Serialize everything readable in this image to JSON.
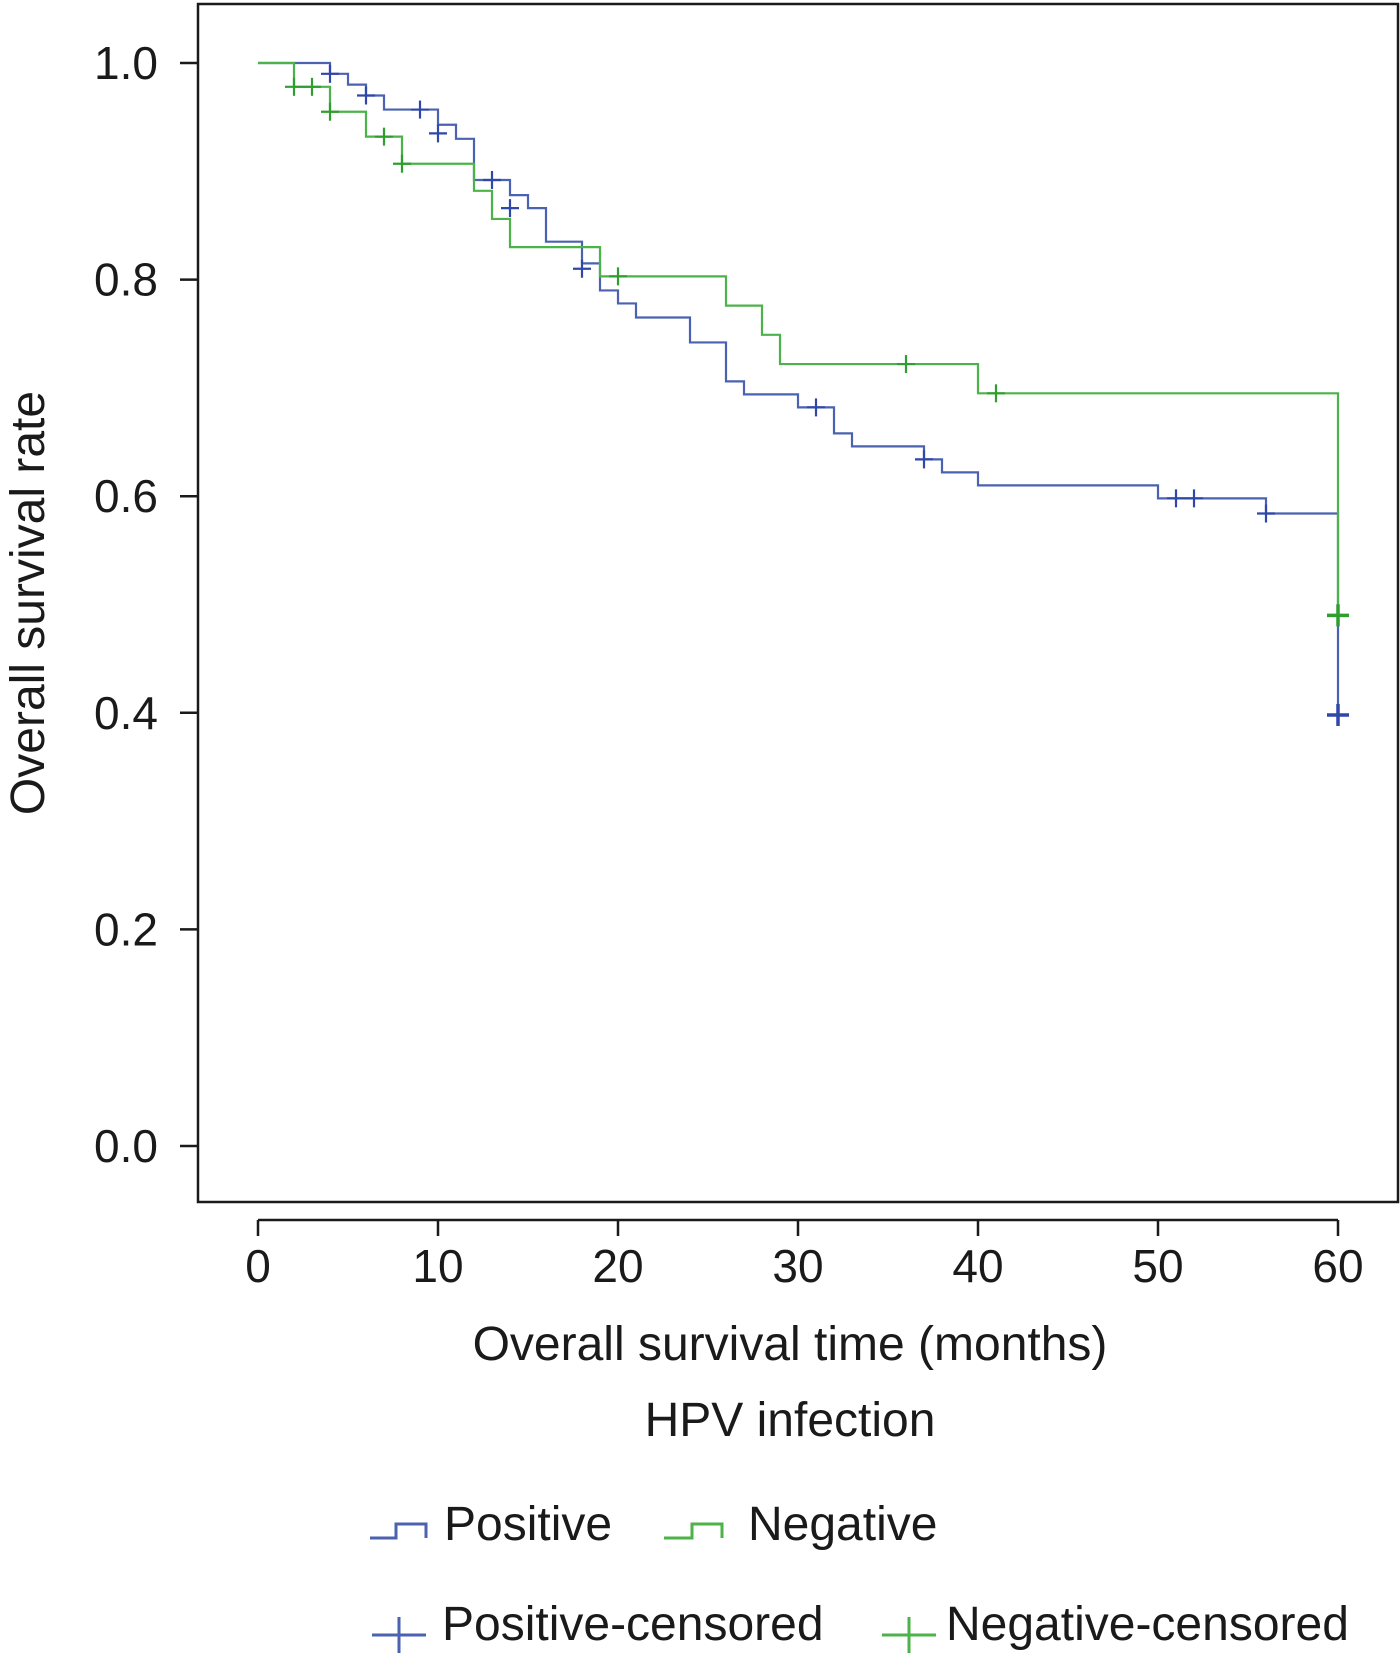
{
  "chart_data": {
    "type": "line",
    "subtype": "kaplan-meier",
    "title": "",
    "xlabel": "Overall survival time (months)",
    "ylabel": "Overall survival rate",
    "legend_title": "HPV infection",
    "legend_position": "bottom",
    "xlim": [
      0,
      60
    ],
    "ylim": [
      0,
      1
    ],
    "xticks": [
      0,
      10,
      20,
      30,
      40,
      50,
      60
    ],
    "yticks": [
      0.0,
      0.2,
      0.4,
      0.6,
      0.8,
      1.0
    ],
    "xtick_labels": [
      "0",
      "10",
      "20",
      "30",
      "40",
      "50",
      "60"
    ],
    "ytick_labels": [
      "0.0",
      "0.2",
      "0.4",
      "0.6",
      "0.8",
      "1.0"
    ],
    "grid": false,
    "series": [
      {
        "name": "Positive",
        "censored_name": "Positive-censored",
        "color": "#4a62b0",
        "censor_color": "#2f47a8",
        "steps": [
          [
            0,
            1.0
          ],
          [
            4,
            0.99
          ],
          [
            5,
            0.98
          ],
          [
            6,
            0.97
          ],
          [
            7,
            0.957
          ],
          [
            10,
            0.943
          ],
          [
            11,
            0.93
          ],
          [
            12,
            0.912
          ],
          [
            12,
            0.892
          ],
          [
            14,
            0.878
          ],
          [
            15,
            0.866
          ],
          [
            16,
            0.835
          ],
          [
            18,
            0.815
          ],
          [
            19,
            0.803
          ],
          [
            19,
            0.79
          ],
          [
            20,
            0.778
          ],
          [
            21,
            0.765
          ],
          [
            24,
            0.742
          ],
          [
            26,
            0.718
          ],
          [
            26,
            0.706
          ],
          [
            27,
            0.694
          ],
          [
            30,
            0.682
          ],
          [
            32,
            0.67
          ],
          [
            32,
            0.658
          ],
          [
            33,
            0.646
          ],
          [
            37,
            0.634
          ],
          [
            38,
            0.622
          ],
          [
            40,
            0.61
          ],
          [
            50,
            0.598
          ],
          [
            56,
            0.584
          ],
          [
            60,
            0.584
          ],
          [
            60,
            0.4
          ]
        ],
        "censored": [
          [
            4,
            0.99
          ],
          [
            6,
            0.97
          ],
          [
            9,
            0.957
          ],
          [
            10,
            0.935
          ],
          [
            13,
            0.892
          ],
          [
            14,
            0.866
          ],
          [
            18,
            0.81
          ],
          [
            31,
            0.682
          ],
          [
            37,
            0.634
          ],
          [
            51,
            0.598
          ],
          [
            52,
            0.598
          ],
          [
            56,
            0.584
          ],
          [
            60,
            0.398
          ]
        ]
      },
      {
        "name": "Negative",
        "censored_name": "Negative-censored",
        "color": "#4cb24a",
        "censor_color": "#2e9e2e",
        "steps": [
          [
            0,
            1.0
          ],
          [
            2,
            0.978
          ],
          [
            4,
            0.955
          ],
          [
            6,
            0.932
          ],
          [
            8,
            0.907
          ],
          [
            12,
            0.882
          ],
          [
            13,
            0.856
          ],
          [
            14,
            0.83
          ],
          [
            19,
            0.803
          ],
          [
            26,
            0.776
          ],
          [
            28,
            0.749
          ],
          [
            29,
            0.722
          ],
          [
            40,
            0.695
          ],
          [
            60,
            0.695
          ],
          [
            60,
            0.49
          ]
        ],
        "censored": [
          [
            2,
            0.978
          ],
          [
            3,
            0.978
          ],
          [
            4,
            0.955
          ],
          [
            7,
            0.932
          ],
          [
            8,
            0.907
          ],
          [
            20,
            0.803
          ],
          [
            36,
            0.722
          ],
          [
            41,
            0.695
          ],
          [
            60,
            0.49
          ]
        ]
      }
    ]
  }
}
